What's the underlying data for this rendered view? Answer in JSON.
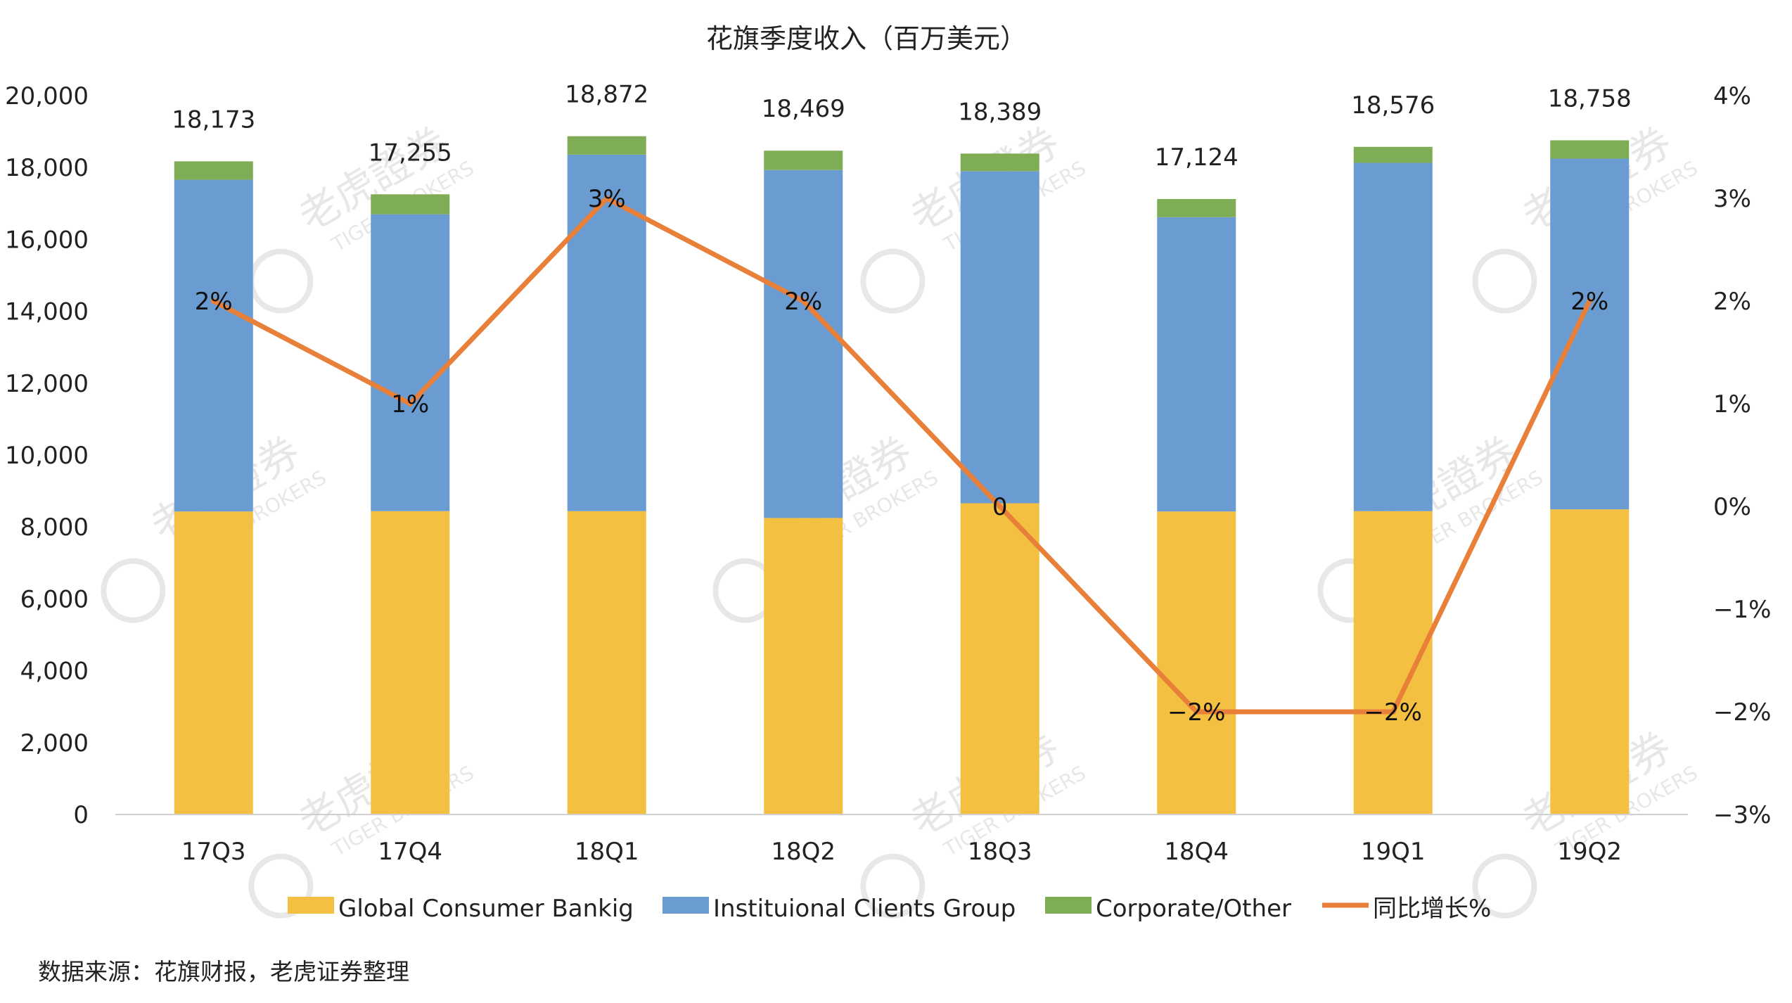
{
  "chart_data": {
    "type": "bar",
    "stacked": true,
    "title": "花旗季度收入（百万美元）",
    "categories": [
      "17Q3",
      "17Q4",
      "18Q1",
      "18Q2",
      "18Q3",
      "18Q4",
      "19Q1",
      "19Q2"
    ],
    "series": [
      {
        "name": "Global Consumer Bankig",
        "color": "#F4C042",
        "values": [
          8430,
          8440,
          8440,
          8250,
          8660,
          8430,
          8440,
          8490
        ]
      },
      {
        "name": "Instituional Clients Group",
        "color": "#6A9BD1",
        "values": [
          9230,
          8260,
          9920,
          9680,
          9240,
          8190,
          9690,
          9760
        ]
      },
      {
        "name": "Corporate/Other",
        "color": "#7FAD55",
        "values": [
          513,
          555,
          512,
          539,
          489,
          504,
          446,
          508
        ]
      }
    ],
    "totals": [
      "18,173",
      "17,255",
      "18,872",
      "18,469",
      "18,389",
      "17,124",
      "18,576",
      "18,758"
    ],
    "line_series": {
      "name": "同比增长%",
      "color": "#E8803A",
      "values": [
        2,
        1,
        3,
        2,
        0,
        -2,
        -2,
        2
      ],
      "labels": [
        "2%",
        "1%",
        "3%",
        "2%",
        "0",
        "−2%",
        "−2%",
        "2%"
      ]
    },
    "ylim": [
      0,
      20000
    ],
    "y_ticks": [
      "0",
      "2,000",
      "4,000",
      "6,000",
      "8,000",
      "10,000",
      "12,000",
      "14,000",
      "16,000",
      "18,000",
      "20,000"
    ],
    "y2lim": [
      -3,
      4
    ],
    "y2_ticks": [
      "−3%",
      "−2%",
      "−1%",
      "0%",
      "1%",
      "2%",
      "3%",
      "4%"
    ],
    "grid": false,
    "legend_position": "bottom"
  },
  "source_note": "数据来源：花旗财报，老虎证券整理",
  "watermark": {
    "cn": "老虎證券",
    "en": "TIGER BROKERS"
  }
}
